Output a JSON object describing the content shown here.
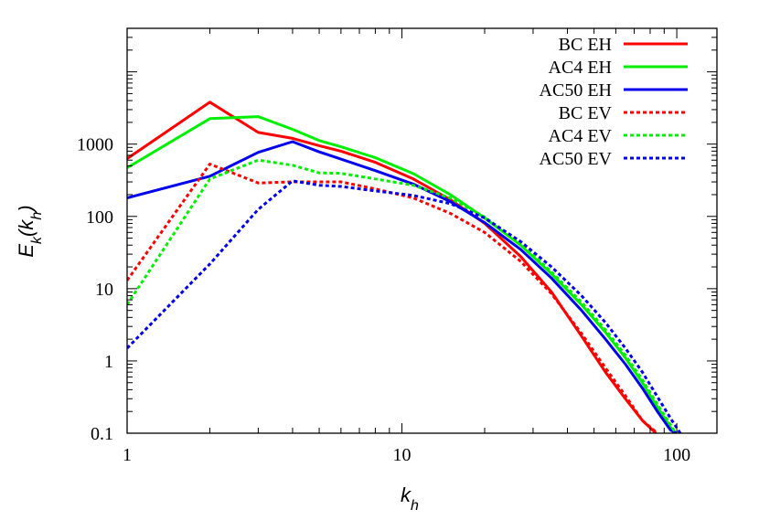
{
  "chart_data": {
    "type": "line",
    "title": "",
    "xlabel": "k",
    "xlabel_sub": "h",
    "ylabel_main": "E",
    "ylabel_sub": "k",
    "ylabel_paren_open": "(k",
    "ylabel_paren_sub": "h",
    "ylabel_paren_close": ")",
    "x_scale": "log",
    "y_scale": "log",
    "xlim": [
      1,
      140
    ],
    "ylim": [
      0.1,
      40000
    ],
    "x_ticks": [
      1,
      10,
      100
    ],
    "x_tick_labels": [
      "1",
      "10",
      "100"
    ],
    "y_ticks": [
      0.1,
      1,
      10,
      100,
      1000
    ],
    "y_tick_labels": [
      "0.1",
      "1",
      "10",
      "100",
      "1000"
    ],
    "grid": false,
    "legend_position": "top-right",
    "series": [
      {
        "name": "BC EH",
        "color": "#ff0000",
        "style": "solid",
        "x": [
          1,
          2,
          3,
          4,
          5,
          6,
          8,
          11,
          15,
          20,
          27,
          35,
          45,
          55,
          65,
          75,
          84
        ],
        "y": [
          630,
          3800,
          1450,
          1200,
          950,
          800,
          560,
          330,
          170,
          80,
          28,
          9,
          2.2,
          0.7,
          0.3,
          0.15,
          0.1
        ]
      },
      {
        "name": "AC4 EH",
        "color": "#00ee00",
        "style": "solid",
        "x": [
          1,
          2,
          3,
          4,
          5,
          6,
          8,
          11,
          15,
          20,
          27,
          35,
          45,
          55,
          65,
          75,
          85,
          95,
          98
        ],
        "y": [
          470,
          2250,
          2400,
          1600,
          1120,
          920,
          650,
          390,
          200,
          95,
          40,
          16,
          6,
          2.5,
          1.1,
          0.5,
          0.23,
          0.12,
          0.1
        ]
      },
      {
        "name": "AC50 EH",
        "color": "#0000ee",
        "style": "solid",
        "x": [
          1,
          2,
          3,
          4,
          5,
          6,
          8,
          11,
          15,
          20,
          27,
          35,
          45,
          55,
          65,
          75,
          85,
          95,
          100
        ],
        "y": [
          180,
          360,
          770,
          1080,
          780,
          620,
          430,
          280,
          160,
          82,
          35,
          14,
          5,
          2,
          0.9,
          0.42,
          0.2,
          0.11,
          0.1
        ]
      },
      {
        "name": "BC EV",
        "color": "#ff0000",
        "style": "dashed",
        "x": [
          1,
          2,
          3,
          4,
          5,
          6,
          8,
          11,
          15,
          20,
          27,
          35,
          45,
          55,
          65,
          75,
          85
        ],
        "y": [
          13,
          530,
          290,
          300,
          300,
          300,
          240,
          180,
          110,
          60,
          24,
          8.5,
          2.4,
          0.8,
          0.33,
          0.15,
          0.1
        ]
      },
      {
        "name": "AC4 EV",
        "color": "#00ee00",
        "style": "dashed",
        "x": [
          1,
          2,
          3,
          4,
          5,
          6,
          8,
          11,
          15,
          20,
          27,
          35,
          45,
          55,
          65,
          75,
          85,
          95,
          99
        ],
        "y": [
          6,
          330,
          600,
          510,
          400,
          395,
          330,
          270,
          180,
          98,
          42,
          17,
          6.5,
          2.7,
          1.2,
          0.55,
          0.25,
          0.13,
          0.1
        ]
      },
      {
        "name": "AC50 EV",
        "color": "#0000ee",
        "style": "dashed",
        "x": [
          1,
          2,
          3,
          4,
          5,
          6,
          8,
          11,
          15,
          20,
          27,
          35,
          45,
          55,
          65,
          75,
          85,
          95,
          103
        ],
        "y": [
          1.5,
          22,
          125,
          310,
          270,
          260,
          225,
          195,
          150,
          95,
          45,
          20,
          8,
          3.4,
          1.5,
          0.7,
          0.32,
          0.16,
          0.1
        ]
      }
    ]
  }
}
